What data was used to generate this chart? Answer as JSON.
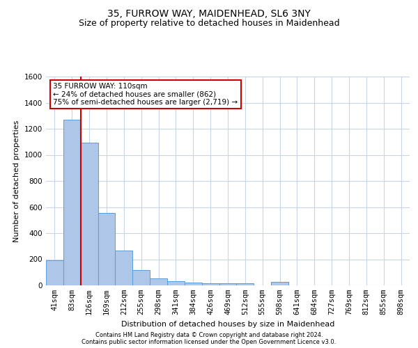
{
  "title": "35, FURROW WAY, MAIDENHEAD, SL6 3NY",
  "subtitle": "Size of property relative to detached houses in Maidenhead",
  "xlabel": "Distribution of detached houses by size in Maidenhead",
  "ylabel": "Number of detached properties",
  "categories": [
    "41sqm",
    "83sqm",
    "126sqm",
    "169sqm",
    "212sqm",
    "255sqm",
    "298sqm",
    "341sqm",
    "384sqm",
    "426sqm",
    "469sqm",
    "512sqm",
    "555sqm",
    "598sqm",
    "641sqm",
    "684sqm",
    "727sqm",
    "769sqm",
    "812sqm",
    "855sqm",
    "898sqm"
  ],
  "values": [
    193,
    1270,
    1095,
    555,
    265,
    120,
    55,
    30,
    20,
    15,
    15,
    15,
    0,
    28,
    0,
    0,
    0,
    0,
    0,
    0,
    0
  ],
  "bar_color": "#aec6e8",
  "bar_edge_color": "#5b9bd5",
  "vline_color": "#cc0000",
  "ylim": [
    0,
    1600
  ],
  "yticks": [
    0,
    200,
    400,
    600,
    800,
    1000,
    1200,
    1400,
    1600
  ],
  "annotation_line1": "35 FURROW WAY: 110sqm",
  "annotation_line2": "← 24% of detached houses are smaller (862)",
  "annotation_line3": "75% of semi-detached houses are larger (2,719) →",
  "annotation_box_color": "#ffffff",
  "annotation_box_edge": "#cc0000",
  "footer1": "Contains HM Land Registry data © Crown copyright and database right 2024.",
  "footer2": "Contains public sector information licensed under the Open Government Licence v3.0.",
  "bg_color": "#ffffff",
  "grid_color": "#c8d4e8",
  "title_fontsize": 10,
  "subtitle_fontsize": 9,
  "axis_label_fontsize": 8,
  "tick_fontsize": 7.5,
  "annotation_fontsize": 7.5,
  "footer_fontsize": 6
}
